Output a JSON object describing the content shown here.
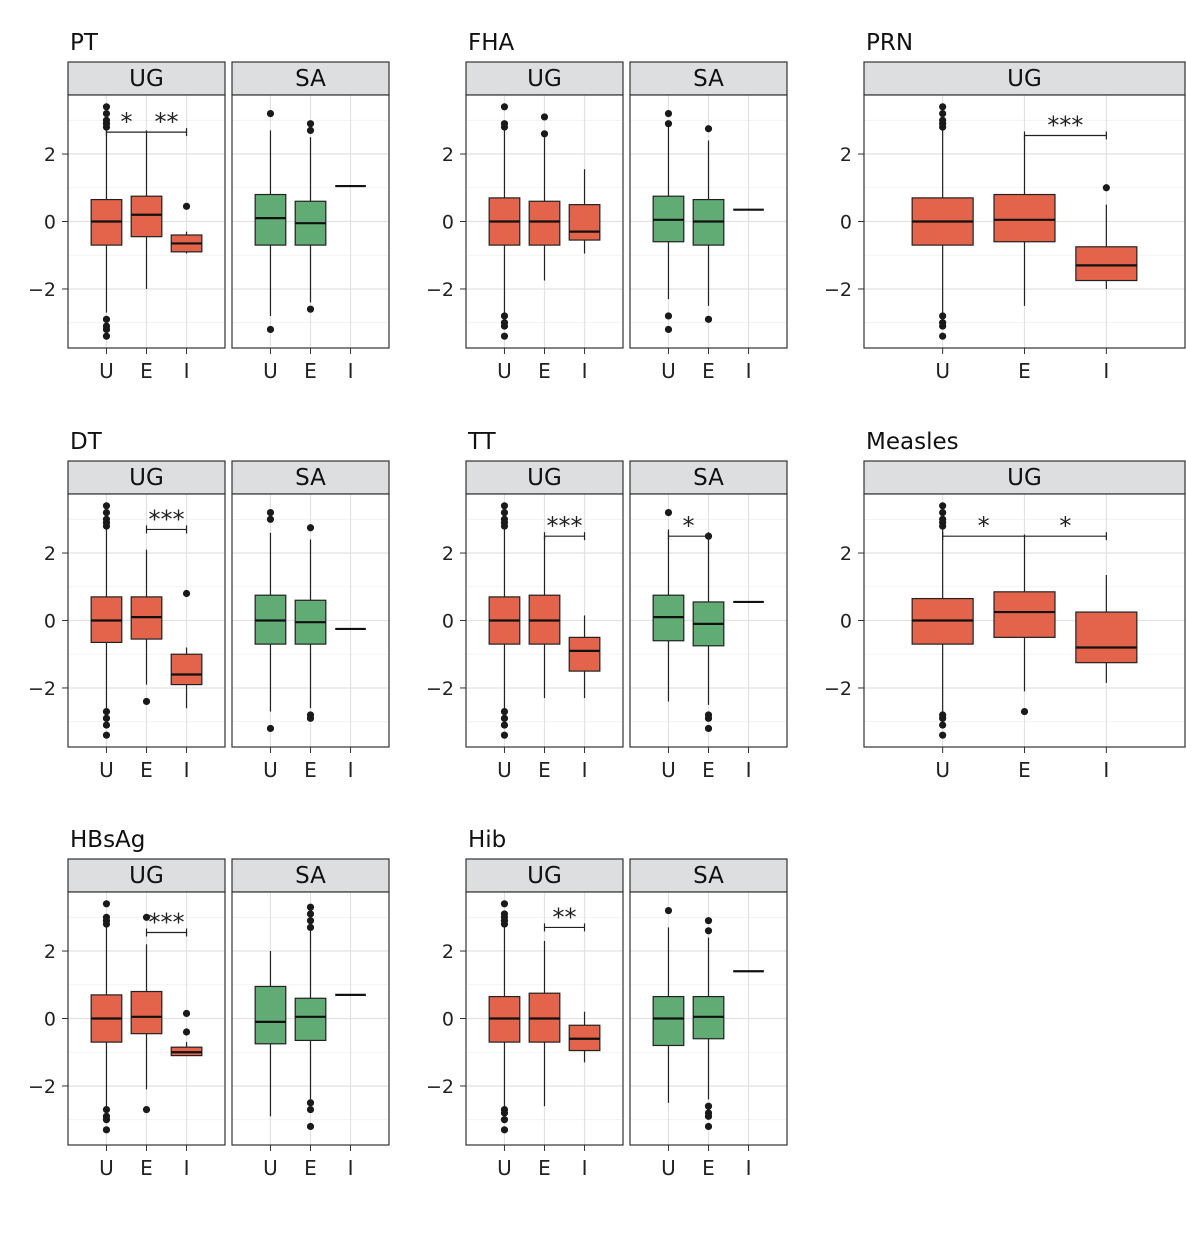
{
  "colors": {
    "UG": "#e3644a",
    "SA": "#60ac74",
    "strip": "#dcdedf",
    "grid": "#e6e6e6",
    "frame": "#333333"
  },
  "chart_data": [
    {
      "type": "box",
      "title": "PT",
      "ylim": [
        -3.75,
        3.75
      ],
      "yticks": [
        -2,
        0,
        2
      ],
      "panels": [
        {
          "label": "UG",
          "color": "UG",
          "categories": [
            "U",
            "E",
            "I"
          ],
          "boxes": [
            {
              "cat": "U",
              "min": -2.7,
              "q1": -0.7,
              "median": 0.0,
              "q3": 0.65,
              "max": 2.7,
              "outliers": [
                3.4,
                3.2,
                3.0,
                2.9,
                2.8,
                -2.9,
                -3.1,
                -3.2,
                -3.4
              ]
            },
            {
              "cat": "E",
              "min": -2.0,
              "q1": -0.45,
              "median": 0.2,
              "q3": 0.75,
              "max": 2.7,
              "outliers": []
            },
            {
              "cat": "I",
              "min": -0.95,
              "q1": -0.9,
              "median": -0.65,
              "q3": -0.4,
              "max": -0.3,
              "outliers": [
                0.45
              ]
            }
          ],
          "sig": [
            {
              "from": "U",
              "to": "I",
              "y": 2.65,
              "labels": [
                {
                  "text": "*",
                  "at": 0.5
                },
                {
                  "text": "**",
                  "at": 1.5
                }
              ]
            }
          ]
        },
        {
          "label": "SA",
          "color": "SA",
          "categories": [
            "U",
            "E",
            "I"
          ],
          "boxes": [
            {
              "cat": "U",
              "min": -2.8,
              "q1": -0.7,
              "median": 0.1,
              "q3": 0.8,
              "max": 2.7,
              "outliers": [
                3.2,
                -3.2
              ]
            },
            {
              "cat": "E",
              "min": -2.4,
              "q1": -0.7,
              "median": -0.05,
              "q3": 0.6,
              "max": 2.5,
              "outliers": [
                2.9,
                2.7,
                -2.6
              ]
            },
            {
              "cat": "I",
              "line": 1.05
            }
          ],
          "sig": []
        }
      ]
    },
    {
      "type": "box",
      "title": "FHA",
      "ylim": [
        -3.75,
        3.75
      ],
      "yticks": [
        -2,
        0,
        2
      ],
      "panels": [
        {
          "label": "UG",
          "color": "UG",
          "categories": [
            "U",
            "E",
            "I"
          ],
          "boxes": [
            {
              "cat": "U",
              "min": -2.7,
              "q1": -0.7,
              "median": 0.0,
              "q3": 0.7,
              "max": 2.7,
              "outliers": [
                3.4,
                2.9,
                2.8,
                -2.8,
                -3.0,
                -3.1,
                -3.4
              ]
            },
            {
              "cat": "E",
              "min": -1.75,
              "q1": -0.7,
              "median": 0.0,
              "q3": 0.6,
              "max": 2.5,
              "outliers": [
                3.1,
                2.6
              ]
            },
            {
              "cat": "I",
              "min": -0.95,
              "q1": -0.55,
              "median": -0.3,
              "q3": 0.5,
              "max": 1.55,
              "outliers": []
            }
          ],
          "sig": []
        },
        {
          "label": "SA",
          "color": "SA",
          "categories": [
            "U",
            "E",
            "I"
          ],
          "boxes": [
            {
              "cat": "U",
              "min": -2.3,
              "q1": -0.6,
              "median": 0.05,
              "q3": 0.75,
              "max": 2.8,
              "outliers": [
                3.2,
                2.9,
                -2.8,
                -3.2
              ]
            },
            {
              "cat": "E",
              "min": -2.5,
              "q1": -0.7,
              "median": 0.0,
              "q3": 0.65,
              "max": 2.4,
              "outliers": [
                2.75,
                -2.9
              ]
            },
            {
              "cat": "I",
              "line": 0.35
            }
          ],
          "sig": []
        }
      ]
    },
    {
      "type": "box",
      "title": "PRN",
      "ylim": [
        -3.75,
        3.75
      ],
      "yticks": [
        -2,
        0,
        2
      ],
      "panels": [
        {
          "label": "UG",
          "color": "UG",
          "categories": [
            "U",
            "E",
            "I"
          ],
          "boxes": [
            {
              "cat": "U",
              "min": -2.7,
              "q1": -0.7,
              "median": 0.0,
              "q3": 0.7,
              "max": 2.7,
              "outliers": [
                3.4,
                3.2,
                3.0,
                2.9,
                2.8,
                -2.8,
                -3.0,
                -3.1,
                -3.4
              ]
            },
            {
              "cat": "E",
              "min": -2.5,
              "q1": -0.6,
              "median": 0.05,
              "q3": 0.8,
              "max": 2.55,
              "outliers": []
            },
            {
              "cat": "I",
              "min": -2.0,
              "q1": -1.75,
              "median": -1.3,
              "q3": -0.75,
              "max": 0.5,
              "outliers": [
                1.0
              ]
            }
          ],
          "sig": [
            {
              "from": "E",
              "to": "I",
              "y": 2.55,
              "labels": [
                {
                  "text": "***",
                  "at": 0.5
                }
              ]
            }
          ]
        }
      ]
    },
    {
      "type": "box",
      "title": "DT",
      "ylim": [
        -3.75,
        3.75
      ],
      "yticks": [
        -2,
        0,
        2
      ],
      "panels": [
        {
          "label": "UG",
          "color": "UG",
          "categories": [
            "U",
            "E",
            "I"
          ],
          "boxes": [
            {
              "cat": "U",
              "min": -2.6,
              "q1": -0.65,
              "median": 0.0,
              "q3": 0.7,
              "max": 2.7,
              "outliers": [
                3.4,
                3.2,
                3.0,
                2.9,
                2.8,
                -2.7,
                -2.9,
                -3.1,
                -3.4
              ]
            },
            {
              "cat": "E",
              "min": -1.9,
              "q1": -0.55,
              "median": 0.1,
              "q3": 0.7,
              "max": 2.1,
              "outliers": [
                -2.4
              ]
            },
            {
              "cat": "I",
              "min": -2.6,
              "q1": -1.9,
              "median": -1.6,
              "q3": -1.0,
              "max": -0.8,
              "outliers": [
                0.8
              ]
            }
          ],
          "sig": [
            {
              "from": "E",
              "to": "I",
              "y": 2.7,
              "labels": [
                {
                  "text": "***",
                  "at": 0.5
                }
              ]
            }
          ]
        },
        {
          "label": "SA",
          "color": "SA",
          "categories": [
            "U",
            "E",
            "I"
          ],
          "boxes": [
            {
              "cat": "U",
              "min": -2.7,
              "q1": -0.7,
              "median": 0.0,
              "q3": 0.75,
              "max": 2.6,
              "outliers": [
                3.2,
                3.0,
                -3.2
              ]
            },
            {
              "cat": "E",
              "min": -2.6,
              "q1": -0.7,
              "median": -0.05,
              "q3": 0.6,
              "max": 2.4,
              "outliers": [
                2.75,
                -2.8,
                -2.9
              ]
            },
            {
              "cat": "I",
              "line": -0.25
            }
          ],
          "sig": []
        }
      ]
    },
    {
      "type": "box",
      "title": "TT",
      "ylim": [
        -3.75,
        3.75
      ],
      "yticks": [
        -2,
        0,
        2
      ],
      "panels": [
        {
          "label": "UG",
          "color": "UG",
          "categories": [
            "U",
            "E",
            "I"
          ],
          "boxes": [
            {
              "cat": "U",
              "min": -2.7,
              "q1": -0.7,
              "median": 0.0,
              "q3": 0.7,
              "max": 2.7,
              "outliers": [
                3.4,
                3.2,
                3.0,
                2.9,
                2.8,
                -2.7,
                -2.9,
                -3.1,
                -3.4
              ]
            },
            {
              "cat": "E",
              "min": -2.3,
              "q1": -0.7,
              "median": 0.0,
              "q3": 0.75,
              "max": 2.5,
              "outliers": []
            },
            {
              "cat": "I",
              "min": -2.3,
              "q1": -1.5,
              "median": -0.9,
              "q3": -0.5,
              "max": 0.15,
              "outliers": []
            }
          ],
          "sig": [
            {
              "from": "E",
              "to": "I",
              "y": 2.5,
              "labels": [
                {
                  "text": "***",
                  "at": 0.5
                }
              ]
            }
          ]
        },
        {
          "label": "SA",
          "color": "SA",
          "categories": [
            "U",
            "E",
            "I"
          ],
          "boxes": [
            {
              "cat": "U",
              "min": -2.4,
              "q1": -0.6,
              "median": 0.1,
              "q3": 0.75,
              "max": 2.7,
              "outliers": [
                3.2
              ]
            },
            {
              "cat": "E",
              "min": -2.5,
              "q1": -0.75,
              "median": -0.1,
              "q3": 0.55,
              "max": 2.5,
              "outliers": [
                2.5,
                -2.8,
                -2.9,
                -3.2
              ]
            },
            {
              "cat": "I",
              "line": 0.55
            }
          ],
          "sig": [
            {
              "from": "U",
              "to": "E",
              "y": 2.5,
              "labels": [
                {
                  "text": "*",
                  "at": 0.5
                }
              ]
            }
          ]
        }
      ]
    },
    {
      "type": "box",
      "title": "Measles",
      "ylim": [
        -3.75,
        3.75
      ],
      "yticks": [
        -2,
        0,
        2
      ],
      "panels": [
        {
          "label": "UG",
          "color": "UG",
          "categories": [
            "U",
            "E",
            "I"
          ],
          "boxes": [
            {
              "cat": "U",
              "min": -2.7,
              "q1": -0.7,
              "median": 0.0,
              "q3": 0.65,
              "max": 2.7,
              "outliers": [
                3.4,
                3.2,
                3.0,
                2.9,
                2.8,
                -2.8,
                -2.9,
                -3.1,
                -3.4
              ]
            },
            {
              "cat": "E",
              "min": -2.1,
              "q1": -0.5,
              "median": 0.25,
              "q3": 0.85,
              "max": 2.55,
              "outliers": [
                -2.7
              ]
            },
            {
              "cat": "I",
              "min": -1.85,
              "q1": -1.25,
              "median": -0.8,
              "q3": 0.25,
              "max": 1.35,
              "outliers": []
            }
          ],
          "sig": [
            {
              "from": "U",
              "to": "I",
              "y": 2.5,
              "labels": [
                {
                  "text": "*",
                  "at": 0.5
                },
                {
                  "text": "*",
                  "at": 1.5
                }
              ]
            }
          ]
        }
      ]
    },
    {
      "type": "box",
      "title": "HBsAg",
      "ylim": [
        -3.75,
        3.75
      ],
      "yticks": [
        -2,
        0,
        2
      ],
      "panels": [
        {
          "label": "UG",
          "color": "UG",
          "categories": [
            "U",
            "E",
            "I"
          ],
          "boxes": [
            {
              "cat": "U",
              "min": -2.7,
              "q1": -0.7,
              "median": 0.0,
              "q3": 0.7,
              "max": 2.7,
              "outliers": [
                3.4,
                3.0,
                2.9,
                2.8,
                -2.7,
                -2.9,
                -3.0,
                -3.3
              ]
            },
            {
              "cat": "E",
              "min": -2.1,
              "q1": -0.45,
              "median": 0.05,
              "q3": 0.8,
              "max": 2.2,
              "outliers": [
                3.0,
                -2.7
              ]
            },
            {
              "cat": "I",
              "min": -1.1,
              "q1": -1.1,
              "median": -1.0,
              "q3": -0.85,
              "max": -0.7,
              "outliers": [
                0.15,
                -0.4
              ]
            }
          ],
          "sig": [
            {
              "from": "E",
              "to": "I",
              "y": 2.55,
              "labels": [
                {
                  "text": "***",
                  "at": 0.5
                }
              ]
            }
          ]
        },
        {
          "label": "SA",
          "color": "SA",
          "categories": [
            "U",
            "E",
            "I"
          ],
          "boxes": [
            {
              "cat": "U",
              "min": -2.9,
              "q1": -0.75,
              "median": -0.1,
              "q3": 0.95,
              "max": 2.0,
              "outliers": []
            },
            {
              "cat": "E",
              "min": -2.4,
              "q1": -0.65,
              "median": 0.05,
              "q3": 0.6,
              "max": 2.6,
              "outliers": [
                3.3,
                3.1,
                2.9,
                2.7,
                -2.5,
                -2.7,
                -3.2
              ]
            },
            {
              "cat": "I",
              "line": 0.7
            }
          ],
          "sig": []
        }
      ]
    },
    {
      "type": "box",
      "title": "Hib",
      "ylim": [
        -3.75,
        3.75
      ],
      "yticks": [
        -2,
        0,
        2
      ],
      "panels": [
        {
          "label": "UG",
          "color": "UG",
          "categories": [
            "U",
            "E",
            "I"
          ],
          "boxes": [
            {
              "cat": "U",
              "min": -2.6,
              "q1": -0.7,
              "median": 0.0,
              "q3": 0.65,
              "max": 2.7,
              "outliers": [
                3.4,
                3.1,
                3.0,
                2.9,
                2.8,
                -2.7,
                -2.8,
                -3.0,
                -3.3
              ]
            },
            {
              "cat": "E",
              "min": -2.6,
              "q1": -0.7,
              "median": 0.0,
              "q3": 0.75,
              "max": 2.3,
              "outliers": []
            },
            {
              "cat": "I",
              "min": -1.3,
              "q1": -0.95,
              "median": -0.6,
              "q3": -0.2,
              "max": 0.2,
              "outliers": []
            }
          ],
          "sig": [
            {
              "from": "E",
              "to": "I",
              "y": 2.7,
              "labels": [
                {
                  "text": "**",
                  "at": 0.5
                }
              ]
            }
          ]
        },
        {
          "label": "SA",
          "color": "SA",
          "categories": [
            "U",
            "E",
            "I"
          ],
          "boxes": [
            {
              "cat": "U",
              "min": -2.5,
              "q1": -0.8,
              "median": 0.0,
              "q3": 0.65,
              "max": 2.7,
              "outliers": [
                3.2
              ]
            },
            {
              "cat": "E",
              "min": -2.4,
              "q1": -0.6,
              "median": 0.05,
              "q3": 0.65,
              "max": 2.4,
              "outliers": [
                2.9,
                2.6,
                -2.6,
                -2.8,
                -2.9,
                -3.2
              ]
            },
            {
              "cat": "I",
              "line": 1.4
            }
          ],
          "sig": []
        }
      ]
    }
  ]
}
